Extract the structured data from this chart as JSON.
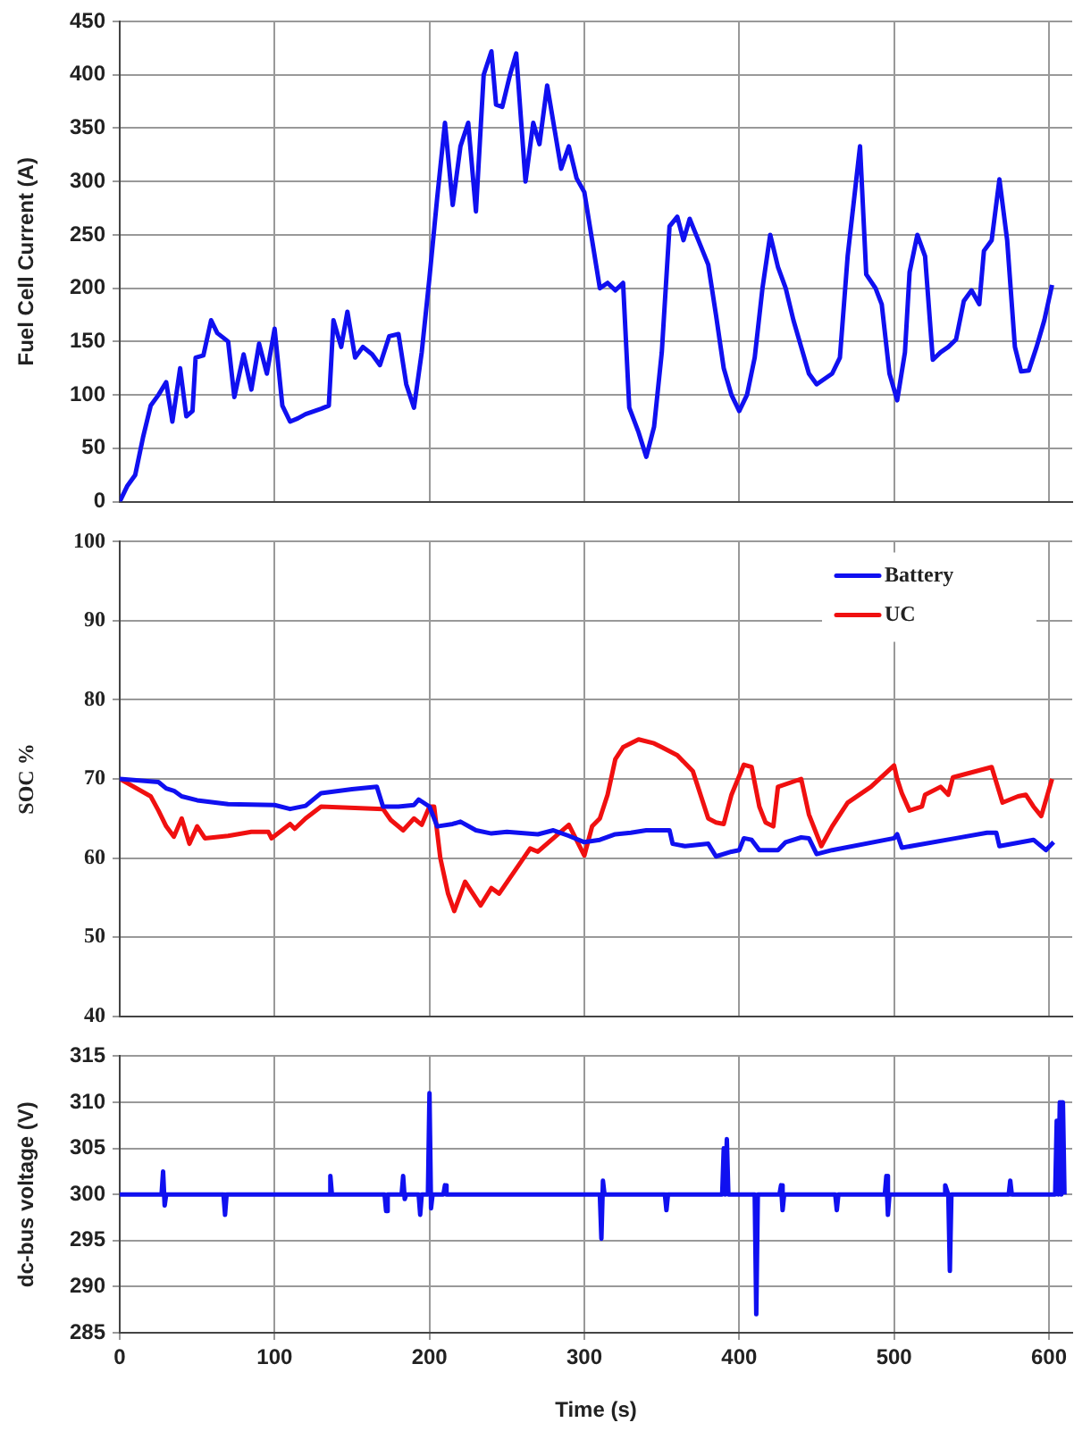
{
  "chart_data": [
    {
      "type": "line",
      "ylabel": "Fuel Cell Current (A)",
      "color": "#1010f0",
      "grid": true,
      "tick_labels": "y",
      "xlim": [
        0,
        615
      ],
      "xticks": [
        0,
        100,
        200,
        300,
        400,
        500,
        600
      ],
      "ylim": [
        0,
        450
      ],
      "yticks": [
        0,
        50,
        100,
        150,
        200,
        250,
        300,
        350,
        400,
        450
      ],
      "x": [
        0,
        5,
        10,
        15,
        20,
        25,
        30,
        34,
        39,
        43,
        47,
        49,
        54,
        59,
        63,
        70,
        74,
        80,
        85,
        90,
        95,
        100,
        105,
        110,
        115,
        120,
        130,
        135,
        138,
        143,
        147,
        152,
        157,
        163,
        168,
        174,
        180,
        185,
        190,
        195,
        200,
        205,
        210,
        215,
        220,
        225,
        230,
        235,
        240,
        243,
        247,
        252,
        256,
        262,
        267,
        271,
        276,
        285,
        290,
        295,
        300,
        305,
        310,
        315,
        320,
        325,
        329,
        335,
        340,
        345,
        350,
        355,
        360,
        364,
        368,
        375,
        380,
        385,
        390,
        395,
        400,
        405,
        410,
        415,
        420,
        425,
        430,
        435,
        440,
        445,
        450,
        455,
        460,
        465,
        470,
        478,
        482,
        488,
        492,
        497,
        502,
        507,
        510,
        515,
        520,
        525,
        530,
        535,
        540,
        545,
        550,
        555,
        558,
        563,
        568,
        573,
        578,
        582,
        587,
        592,
        597,
        602
      ],
      "values": [
        0,
        15,
        25,
        60,
        90,
        100,
        112,
        75,
        125,
        80,
        85,
        135,
        137,
        170,
        158,
        150,
        98,
        138,
        105,
        148,
        120,
        162,
        90,
        75,
        78,
        82,
        87,
        90,
        170,
        145,
        178,
        135,
        145,
        138,
        128,
        155,
        157,
        110,
        88,
        140,
        210,
        285,
        355,
        278,
        333,
        355,
        272,
        400,
        422,
        372,
        370,
        400,
        420,
        300,
        355,
        335,
        390,
        312,
        333,
        303,
        290,
        245,
        200,
        205,
        198,
        205,
        88,
        65,
        42,
        70,
        140,
        258,
        267,
        245,
        265,
        240,
        222,
        175,
        125,
        100,
        85,
        100,
        135,
        200,
        250,
        220,
        200,
        170,
        145,
        120,
        110,
        115,
        120,
        135,
        230,
        333,
        213,
        200,
        185,
        120,
        95,
        140,
        215,
        250,
        230,
        133,
        140,
        145,
        152,
        188,
        198,
        185,
        235,
        245,
        302,
        245,
        145,
        122,
        123,
        145,
        170,
        203
      ]
    },
    {
      "type": "line",
      "ylabel": "SOC %",
      "grid": true,
      "tick_labels": "y",
      "legend": "top right",
      "xlim": [
        0,
        615
      ],
      "xticks": [
        0,
        100,
        200,
        300,
        400,
        500,
        600
      ],
      "ylim": [
        40,
        100
      ],
      "yticks": [
        40,
        50,
        60,
        70,
        80,
        90,
        100
      ],
      "series": [
        {
          "name": "Battery",
          "color": "#1010f0",
          "x": [
            0,
            25,
            30,
            35,
            40,
            50,
            70,
            100,
            110,
            120,
            130,
            150,
            166,
            170,
            180,
            190,
            193,
            200,
            205,
            215,
            220,
            230,
            240,
            250,
            270,
            280,
            290,
            300,
            310,
            320,
            330,
            340,
            355,
            357,
            365,
            380,
            385,
            395,
            400,
            403,
            408,
            413,
            425,
            430,
            440,
            445,
            450,
            460,
            500,
            502,
            505,
            540,
            560,
            566,
            568,
            590,
            598,
            603
          ],
          "values": [
            70,
            69.6,
            68.8,
            68.5,
            67.8,
            67.3,
            66.8,
            66.7,
            66.2,
            66.6,
            68.2,
            68.7,
            69,
            66.5,
            66.5,
            66.7,
            67.4,
            66.5,
            64,
            64.3,
            64.6,
            63.5,
            63.1,
            63.3,
            63,
            63.5,
            62.8,
            62,
            62.3,
            63,
            63.2,
            63.5,
            63.5,
            61.8,
            61.5,
            61.8,
            60.2,
            60.8,
            61,
            62.5,
            62.3,
            61,
            61,
            62,
            62.6,
            62.5,
            60.5,
            61,
            62.5,
            63,
            61.3,
            62.5,
            63.2,
            63.2,
            61.5,
            62.3,
            61,
            62
          ]
        },
        {
          "name": "UC",
          "color": "#f01010",
          "x": [
            0,
            20,
            25,
            30,
            35,
            40,
            45,
            50,
            55,
            70,
            85,
            96,
            98,
            110,
            113,
            120,
            130,
            170,
            175,
            183,
            190,
            195,
            200,
            203,
            207,
            212,
            216,
            223,
            228,
            233,
            240,
            245,
            265,
            270,
            290,
            300,
            305,
            310,
            315,
            320,
            325,
            335,
            345,
            350,
            360,
            370,
            380,
            385,
            390,
            395,
            403,
            408,
            413,
            417,
            422,
            425,
            440,
            445,
            453,
            460,
            470,
            485,
            500,
            502,
            505,
            510,
            518,
            520,
            530,
            535,
            538,
            563,
            570,
            580,
            585,
            590,
            595,
            602
          ],
          "values": [
            70,
            67.8,
            66,
            64,
            62.7,
            65,
            61.8,
            64,
            62.5,
            62.8,
            63.3,
            63.3,
            62.5,
            64.3,
            63.7,
            65,
            66.5,
            66.2,
            64.8,
            63.5,
            65,
            64.2,
            66.5,
            66.5,
            60,
            55.5,
            53.3,
            57,
            55.5,
            54,
            56.2,
            55.5,
            61.2,
            60.8,
            64.2,
            60.3,
            64,
            65,
            68,
            72.5,
            74,
            75,
            74.5,
            74,
            73,
            71,
            65,
            64.5,
            64.3,
            68,
            71.8,
            71.5,
            66.5,
            64.5,
            64,
            69,
            70,
            65.5,
            61.5,
            64,
            67,
            69,
            71.7,
            70,
            68.2,
            66,
            66.5,
            68,
            69,
            68,
            70.2,
            71.5,
            67,
            67.8,
            68,
            66.5,
            65.3,
            70
          ]
        }
      ]
    },
    {
      "type": "line",
      "xlabel": "Time (s)",
      "ylabel": "dc-bus voltage (V)",
      "color": "#1010f0",
      "grid": true,
      "xlim": [
        0,
        615
      ],
      "xticks": [
        0,
        100,
        200,
        300,
        400,
        500,
        600
      ],
      "ylim": [
        285,
        315
      ],
      "yticks": [
        285,
        290,
        295,
        300,
        305,
        310,
        315
      ],
      "x": [
        0,
        27,
        28,
        29,
        30,
        67,
        68,
        69,
        135,
        136,
        137,
        171,
        172,
        173,
        182,
        183,
        184,
        185,
        193,
        194,
        195,
        199,
        200,
        201,
        202,
        209,
        210,
        211,
        310,
        311,
        312,
        313,
        352,
        353,
        354,
        389,
        390,
        391,
        392,
        393,
        410,
        411,
        412,
        426,
        427,
        428,
        429,
        462,
        463,
        464,
        494,
        495,
        496,
        497,
        532,
        533,
        535,
        536,
        537,
        574,
        575,
        576,
        604,
        605,
        606,
        607,
        608,
        609,
        610
      ],
      "values": [
        300,
        300,
        302.5,
        298.8,
        300,
        300,
        297.8,
        300,
        300,
        302,
        300,
        300,
        298.2,
        300,
        300,
        302,
        299.5,
        300,
        300,
        297.8,
        300,
        300,
        311,
        298.5,
        300,
        300,
        301,
        300,
        300,
        295.2,
        301.5,
        300,
        300,
        298.3,
        300,
        300,
        305,
        300,
        306,
        300,
        300,
        287,
        300,
        300,
        301,
        298.3,
        300,
        300,
        298.3,
        300,
        300,
        302,
        297.8,
        300,
        300,
        301,
        300,
        291.7,
        300,
        300,
        301.5,
        300,
        300,
        308,
        300,
        310,
        300,
        310,
        300
      ]
    }
  ]
}
